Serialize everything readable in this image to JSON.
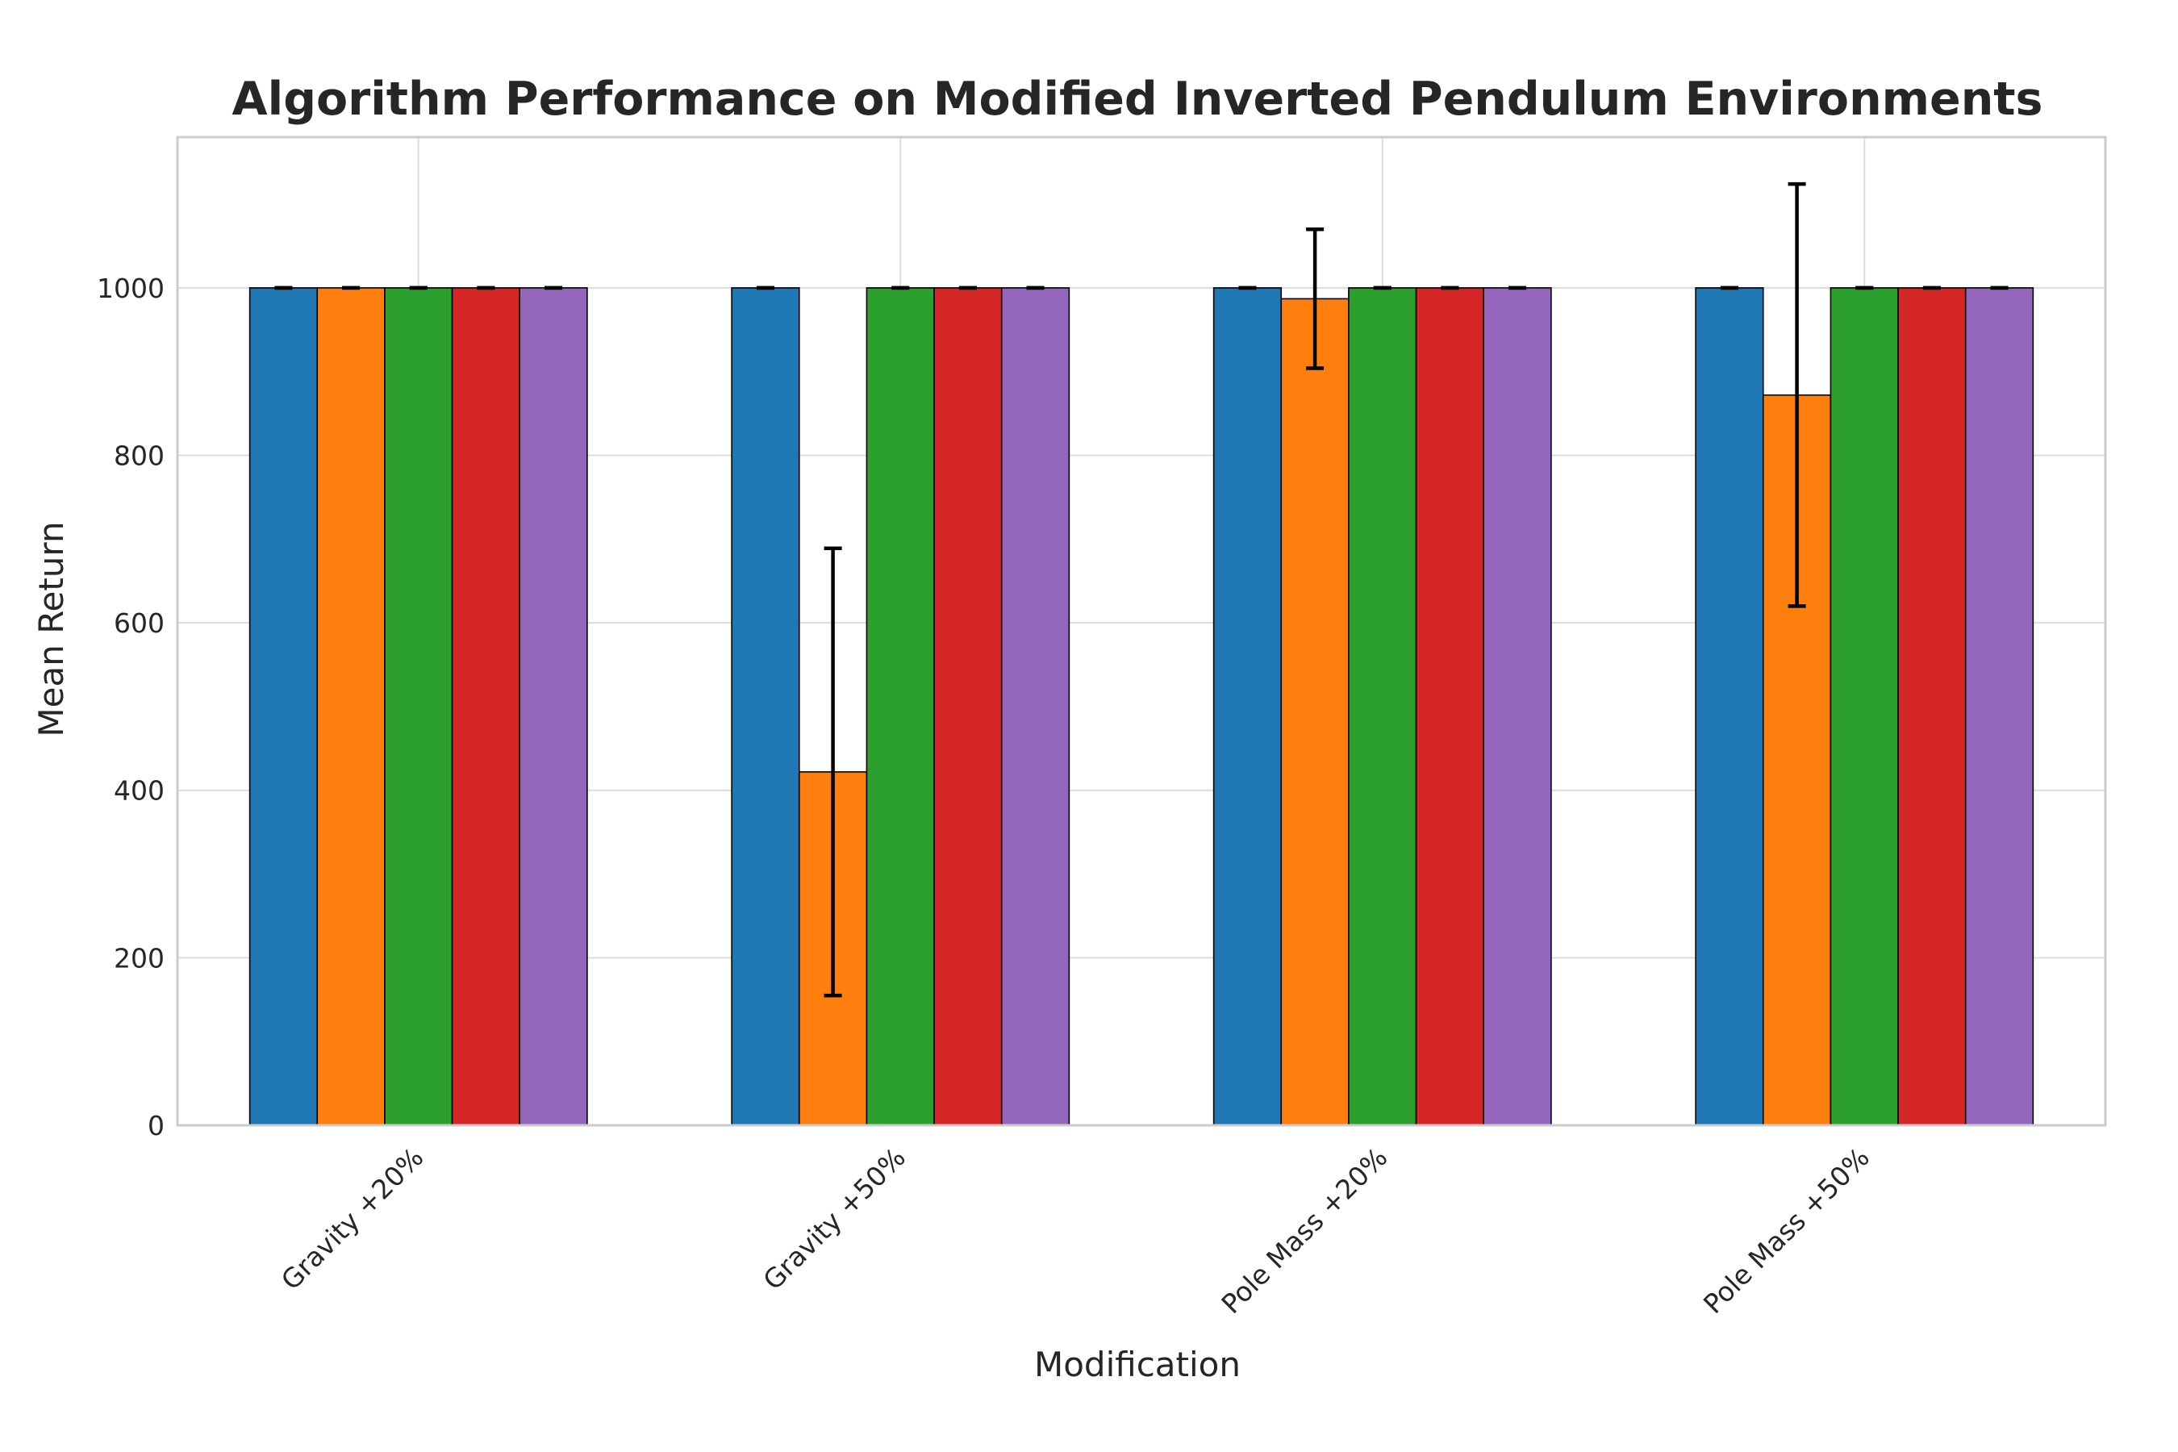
{
  "chart_data": {
    "type": "bar",
    "title": "Algorithm Performance on Modified Inverted Pendulum Environments",
    "xlabel": "Modification",
    "ylabel": "Mean Return",
    "categories": [
      "Gravity +20%",
      "Gravity +50%",
      "Pole Mass +20%",
      "Pole Mass +50%"
    ],
    "ylim": [
      0,
      1180
    ],
    "yticks": [
      0,
      200,
      400,
      600,
      800,
      1000
    ],
    "grid": true,
    "legend": "none",
    "series": [
      {
        "color": "#1f77b4",
        "values": [
          1000,
          1000,
          1000,
          1000
        ],
        "errors": [
          0,
          0,
          0,
          0
        ]
      },
      {
        "color": "#ff7f0e",
        "values": [
          1000,
          422,
          987,
          872
        ],
        "errors": [
          0,
          267,
          83,
          252
        ]
      },
      {
        "color": "#2ca02c",
        "values": [
          1000,
          1000,
          1000,
          1000
        ],
        "errors": [
          0,
          0,
          0,
          0
        ]
      },
      {
        "color": "#d62728",
        "values": [
          1000,
          1000,
          1000,
          1000
        ],
        "errors": [
          0,
          0,
          0,
          0
        ]
      },
      {
        "color": "#9467bd",
        "values": [
          1000,
          1000,
          1000,
          1000
        ],
        "errors": [
          0,
          0,
          0,
          0
        ]
      }
    ]
  }
}
